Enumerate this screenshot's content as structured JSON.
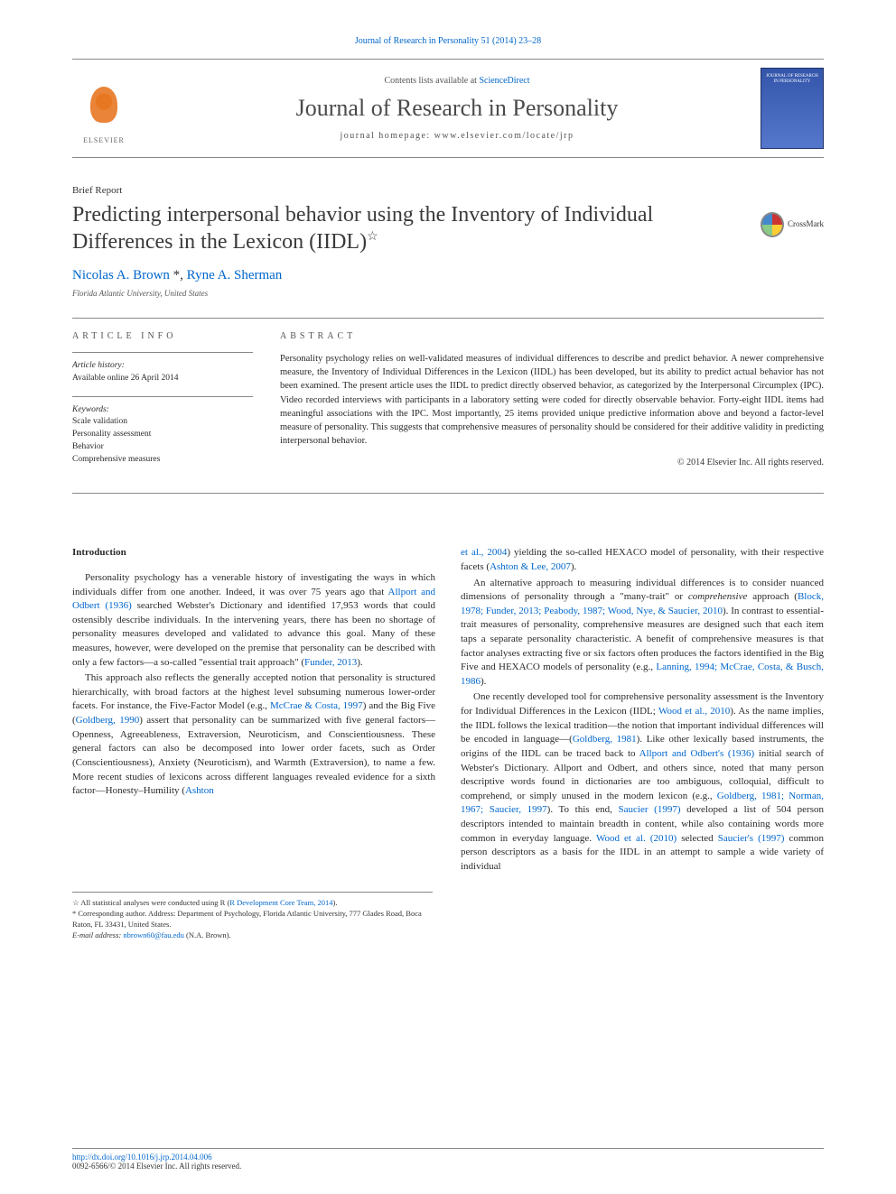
{
  "citation": "Journal of Research in Personality 51 (2014) 23–28",
  "header": {
    "contents_prefix": "Contents lists available at ",
    "contents_link": "ScienceDirect",
    "journal": "Journal of Research in Personality",
    "homepage": "journal homepage: www.elsevier.com/locate/jrp",
    "publisher": "ELSEVIER",
    "cover_title": "JOURNAL OF RESEARCH IN PERSONALITY"
  },
  "article": {
    "type": "Brief Report",
    "title": "Predicting interpersonal behavior using the Inventory of Individual Differences in the Lexicon (IIDL)",
    "title_star": "☆",
    "crossmark": "CrossMark",
    "authors_html": "Nicolas A. Brown",
    "authors_marks": " *, ",
    "authors_2": "Ryne A. Sherman",
    "affiliation": "Florida Atlantic University, United States"
  },
  "info": {
    "label": "ARTICLE INFO",
    "history_label": "Article history:",
    "history": "Available online 26 April 2014",
    "keywords_label": "Keywords:",
    "keywords": [
      "Scale validation",
      "Personality assessment",
      "Behavior",
      "Comprehensive measures"
    ]
  },
  "abstract": {
    "label": "ABSTRACT",
    "text": "Personality psychology relies on well-validated measures of individual differences to describe and predict behavior. A newer comprehensive measure, the Inventory of Individual Differences in the Lexicon (IIDL) has been developed, but its ability to predict actual behavior has not been examined. The present article uses the IIDL to predict directly observed behavior, as categorized by the Interpersonal Circumplex (IPC). Video recorded interviews with participants in a laboratory setting were coded for directly observable behavior. Forty-eight IIDL items had meaningful associations with the IPC. Most importantly, 25 items provided unique predictive information above and beyond a factor-level measure of personality. This suggests that comprehensive measures of personality should be considered for their additive validity in predicting interpersonal behavior.",
    "copyright": "© 2014 Elsevier Inc. All rights reserved."
  },
  "body": {
    "heading": "Introduction",
    "col1": {
      "p1a": "Personality psychology has a venerable history of investigating the ways in which individuals differ from one another. Indeed, it was over 75 years ago that ",
      "c1": "Allport and Odbert (1936)",
      "p1b": " searched Webster's Dictionary and identified 17,953 words that could ostensibly describe individuals. In the intervening years, there has been no shortage of personality measures developed and validated to advance this goal. Many of these measures, however, were developed on the premise that personality can be described with only a few factors—a so-called \"essential trait approach\" (",
      "c2": "Funder, 2013",
      "p1c": ").",
      "p2a": "This approach also reflects the generally accepted notion that personality is structured hierarchically, with broad factors at the highest level subsuming numerous lower-order facets. For instance, the Five-Factor Model (e.g., ",
      "c3": "McCrae & Costa, 1997",
      "p2b": ") and the Big Five (",
      "c4": "Goldberg, 1990",
      "p2c": ") assert that personality can be summarized with five general factors—Openness, Agreeableness, Extraversion, Neuroticism, and Conscientiousness. These general factors can also be decomposed into lower order facets, such as Order (Conscientiousness), Anxiety (Neuroticism), and Warmth (Extraversion), to name a few. More recent studies of lexicons across different languages revealed evidence for a sixth factor—Honesty–Humility (",
      "c5": "Ashton"
    },
    "col2": {
      "p1a_cont": "et al., 2004",
      "p1b": ") yielding the so-called HEXACO model of personality, with their respective facets (",
      "c1": "Ashton & Lee, 2007",
      "p1c": ").",
      "p2a": "An alternative approach to measuring individual differences is to consider nuanced dimensions of personality through a \"many-trait\" or ",
      "p2ital": "comprehensive",
      "p2b": " approach (",
      "c2": "Block, 1978; Funder, 2013; Peabody, 1987; Wood, Nye, & Saucier, 2010",
      "p2c": "). In contrast to essential-trait measures of personality, comprehensive measures are designed such that each item taps a separate personality characteristic. A benefit of comprehensive measures is that factor analyses extracting five or six factors often produces the factors identified in the Big Five and HEXACO models of personality (e.g., ",
      "c3": "Lanning, 1994; McCrae, Costa, & Busch, 1986",
      "p2d": ").",
      "p3a": "One recently developed tool for comprehensive personality assessment is the Inventory for Individual Differences in the Lexicon (IIDL; ",
      "c4": "Wood et al., 2010",
      "p3b": "). As the name implies, the IIDL follows the lexical tradition—the notion that important individual differences will be encoded in language—(",
      "c5": "Goldberg, 1981",
      "p3c": "). Like other lexically based instruments, the origins of the IIDL can be traced back to ",
      "c6": "Allport and Odbert's (1936)",
      "p3d": " initial search of Webster's Dictionary. Allport and Odbert, and others since, noted that many person descriptive words found in dictionaries are too ambiguous, colloquial, difficult to comprehend, or simply unused in the modern lexicon (e.g., ",
      "c7": "Goldberg, 1981; Norman, 1967; Saucier, 1997",
      "p3e": "). To this end, ",
      "c8": "Saucier (1997)",
      "p3f": " developed a list of 504 person descriptors intended to maintain breadth in content, while also containing words more common in everyday language. ",
      "c9": "Wood et al. (2010)",
      "p3g": " selected ",
      "c10": "Saucier's (1997)",
      "p3h": " common person descriptors as a basis for the IIDL in an attempt to sample a wide variety of individual"
    }
  },
  "footnotes": {
    "f1a": "☆ All statistical analyses were conducted using R (",
    "f1link": "R Development Core Team, 2014",
    "f1b": ").",
    "f2": "* Corresponding author. Address: Department of Psychology, Florida Atlantic University, 777 Glades Road, Boca Raton, FL 33431, United States.",
    "f3_label": "E-mail address: ",
    "f3_email": "nbrown60@fau.edu",
    "f3_suffix": " (N.A. Brown)."
  },
  "footer": {
    "doi": "http://dx.doi.org/10.1016/j.jrp.2014.04.006",
    "issn": "0092-6566/© 2014 Elsevier Inc. All rights reserved."
  },
  "colors": {
    "link": "#0066cc",
    "text": "#2a2a2a",
    "rule": "#888888",
    "elsevier": "#e87722"
  }
}
